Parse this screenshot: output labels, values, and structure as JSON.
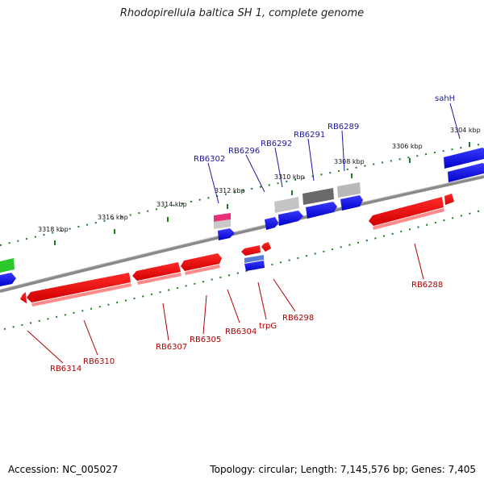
{
  "title": "Rhodopirellula baltica SH 1, complete genome",
  "footer": {
    "accession": "Accession: NC_005027",
    "summary": "Topology: circular; Length: 7,145,576 bp; Genes: 7,405"
  },
  "scale_labels": [
    "3304 kbp",
    "3306 kbp",
    "3308 kbp",
    "3310 kbp",
    "3312 kbp",
    "3314 kbp",
    "3316 kbp",
    "3318 kbp"
  ],
  "genes_top": [
    "sahH",
    "RB6289",
    "RB6291",
    "RB6292",
    "RB6296",
    "RB6302"
  ],
  "genes_bottom": [
    "RB6288",
    "RB6298",
    "trpG",
    "RB6304",
    "RB6305",
    "RB6307",
    "RB6310",
    "RB6314"
  ],
  "colors": {
    "forward": "#0000ee",
    "reverse": "#ee0000",
    "ticks": "#1e7a1e",
    "backbone": "#808080",
    "label_forward": "#1a1aa0",
    "label_reverse": "#b00000"
  }
}
